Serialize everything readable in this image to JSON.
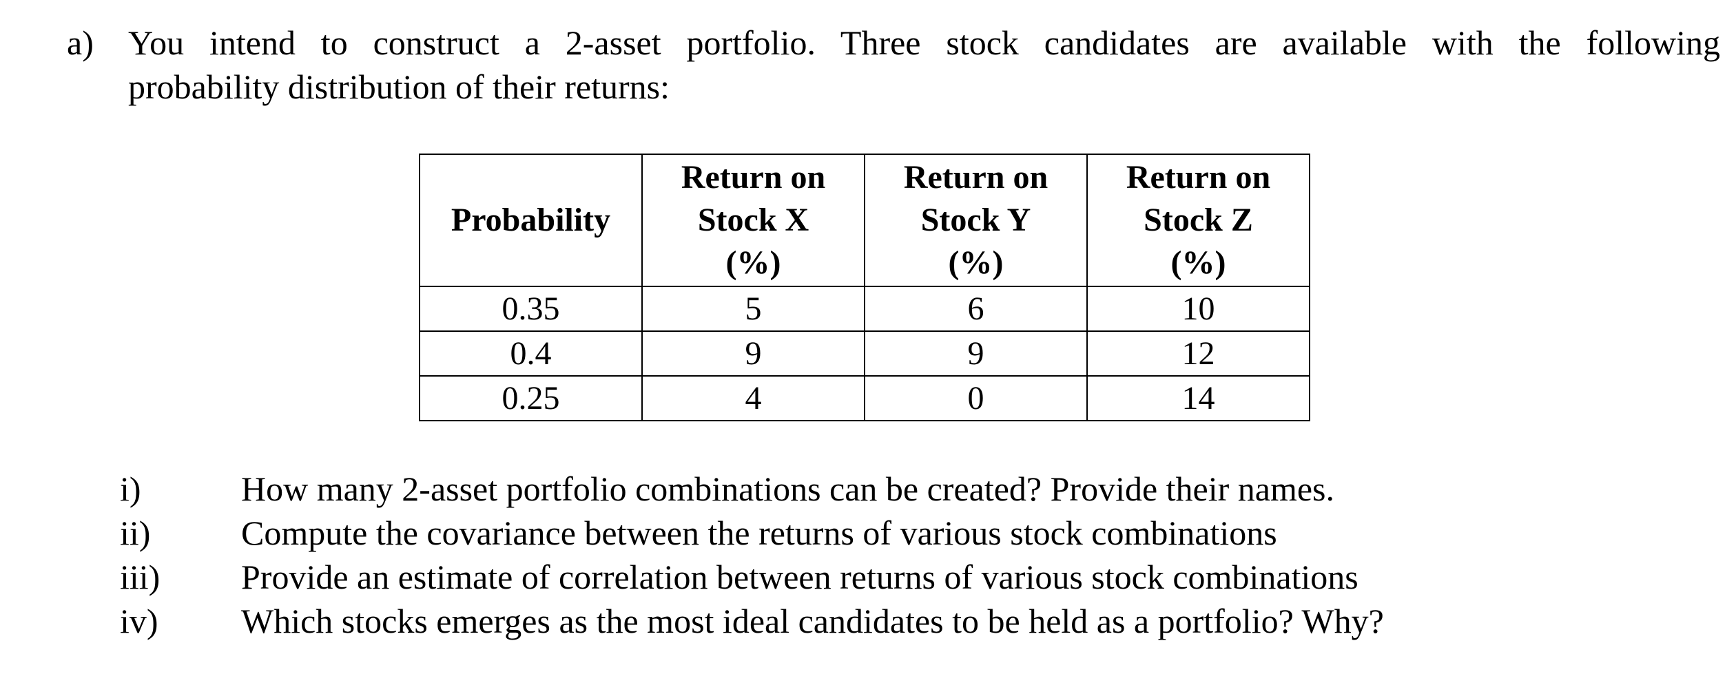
{
  "question": {
    "label": "a)",
    "line1": "You intend to construct a 2-asset portfolio. Three stock candidates are available with the following",
    "line2": "probability distribution of their returns:"
  },
  "table": {
    "headers": [
      [
        "Probability"
      ],
      [
        "Return on",
        "Stock X",
        "(%)"
      ],
      [
        "Return on",
        "Stock Y",
        "(%)"
      ],
      [
        "Return on",
        "Stock Z",
        "(%)"
      ]
    ],
    "rows": [
      [
        "0.35",
        "5",
        "6",
        "10"
      ],
      [
        "0.4",
        "9",
        "9",
        "12"
      ],
      [
        "0.25",
        "4",
        "0",
        "14"
      ]
    ]
  },
  "items": [
    {
      "num": "i)",
      "text": "How many 2-asset portfolio combinations can be created? Provide their names."
    },
    {
      "num": "ii)",
      "text": "Compute the covariance between the returns of various stock combinations"
    },
    {
      "num": "iii)",
      "text": "Provide an estimate of correlation between returns of various stock combinations"
    },
    {
      "num": "iv)",
      "text": "Which stocks emerges as the most ideal candidates to be held as a portfolio? Why?"
    }
  ]
}
